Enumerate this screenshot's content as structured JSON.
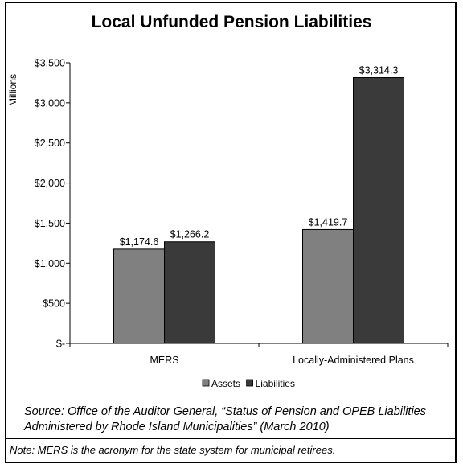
{
  "chart_data": {
    "type": "bar",
    "title": "Local Unfunded Pension Liabilities",
    "ylabel": "Millions",
    "xlabel": "",
    "categories": [
      "MERS",
      "Locally-Administered Plans"
    ],
    "series": [
      {
        "name": "Assets",
        "values": [
          1174.6,
          1419.7
        ],
        "color": "#808080",
        "labels": [
          "$1,174.6",
          "$1,419.7"
        ]
      },
      {
        "name": "Liabilities",
        "values": [
          1266.2,
          3314.3
        ],
        "color": "#3a3a3a",
        "labels": [
          "$1,266.2",
          "$3,314.3"
        ]
      }
    ],
    "ylim": [
      0,
      3500
    ],
    "yticks": [
      0,
      500,
      1000,
      1500,
      2000,
      2500,
      3000,
      3500
    ],
    "ytick_labels": [
      "$-",
      "$500",
      "$1,000",
      "$1,500",
      "$2,000",
      "$2,500",
      "$3,000",
      "$3,500"
    ],
    "legend_position": "bottom",
    "grid": false
  },
  "source_text": "Source: Office of the Auditor General, “Status of Pension and OPEB Liabilities Administered by Rhode Island Municipalities” (March 2010)",
  "note_text": "Note: MERS is the acronym for the state system for municipal retirees."
}
